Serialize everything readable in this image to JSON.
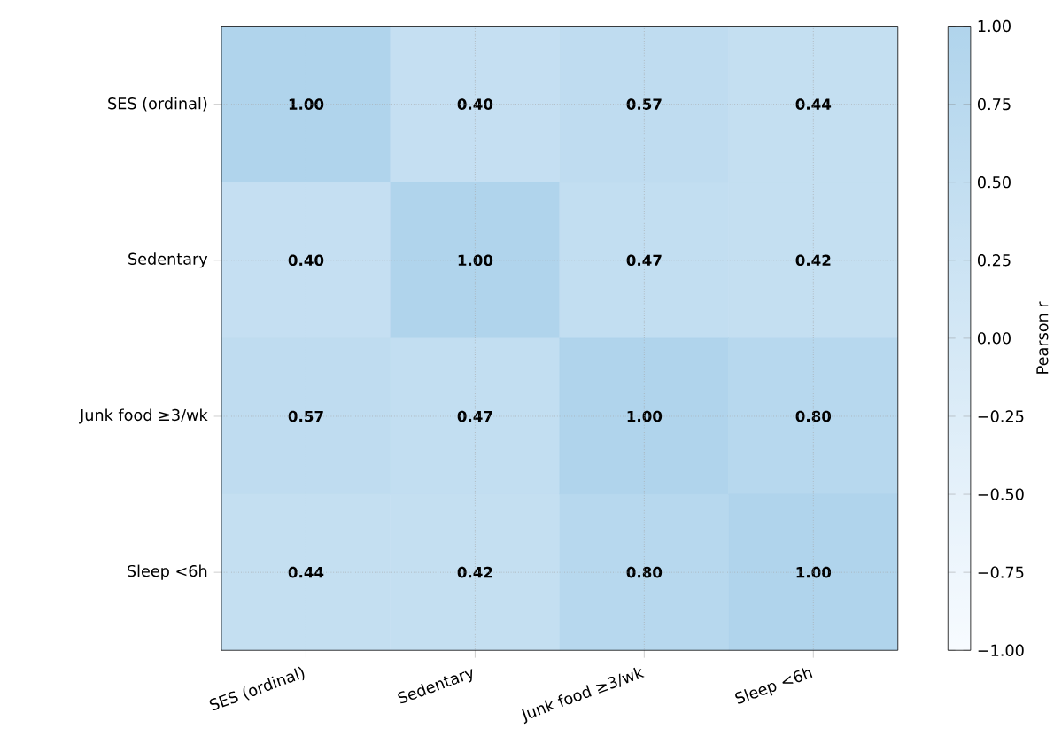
{
  "chart_data": {
    "type": "heatmap",
    "clabel": "Pearson r",
    "categories": [
      "SES (ordinal)",
      "Sedentary",
      "Junk food ≥3/wk",
      "Sleep <6h"
    ],
    "y_categories": [
      "SES (ordinal)",
      "Sedentary",
      "Junk food ≥3/wk",
      "Sleep <6h"
    ],
    "cells": [
      [
        1.0,
        0.4,
        0.57,
        0.44
      ],
      [
        0.4,
        1.0,
        0.47,
        0.42
      ],
      [
        0.57,
        0.47,
        1.0,
        0.8
      ],
      [
        0.44,
        0.42,
        0.8,
        1.0
      ]
    ],
    "cell_labels": [
      [
        "1.00",
        "0.40",
        "0.57",
        "0.44"
      ],
      [
        "0.40",
        "1.00",
        "0.47",
        "0.42"
      ],
      [
        "0.57",
        "0.47",
        "1.00",
        "0.80"
      ],
      [
        "0.44",
        "0.42",
        "0.80",
        "1.00"
      ]
    ],
    "clim": [
      -1,
      1
    ],
    "cticks": [
      {
        "value": -1,
        "label": "−1.00"
      },
      {
        "value": -0.75,
        "label": "−0.75"
      },
      {
        "value": -0.5,
        "label": "−0.50"
      },
      {
        "value": -0.25,
        "label": "−0.25"
      },
      {
        "value": 0,
        "label": "0.00"
      },
      {
        "value": 0.25,
        "label": "0.25"
      },
      {
        "value": 0.5,
        "label": "0.50"
      },
      {
        "value": 0.75,
        "label": "0.75"
      },
      {
        "value": 1,
        "label": "1.00"
      }
    ],
    "grid": true
  }
}
